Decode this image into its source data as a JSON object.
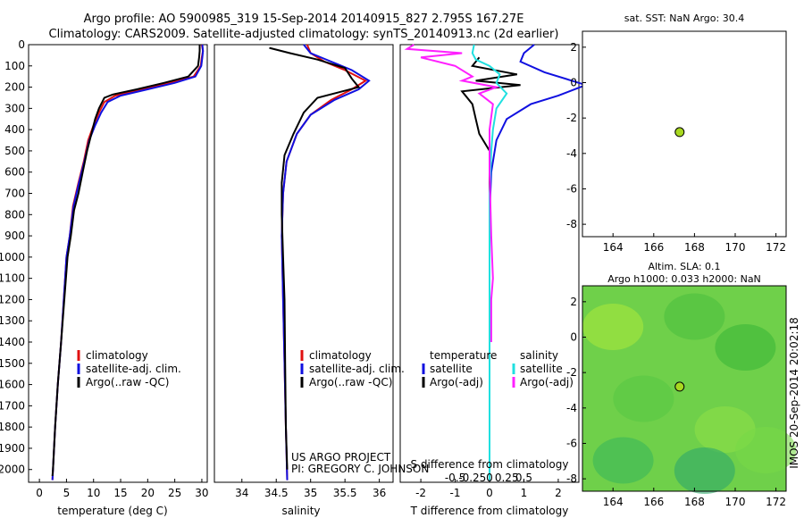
{
  "header": {
    "title_line1": "Argo profile: AO 5900985_319 15-Sep-2014 20140915_827 2.795S 167.27E",
    "title_line2": "Climatology: CARS2009. Satellite-adjusted climatology: synTS_20140913.nc (2d earlier)"
  },
  "colors": {
    "climatology": "#e01010",
    "satellite": "#1010e0",
    "argo": "#000000",
    "salinity_sat": "#20e0e0",
    "salinity_argo": "#ff20ff",
    "argo_dot": "#a8d820",
    "map_background": "#6fd04a"
  },
  "credit": {
    "line1": "US ARGO PROJECT",
    "line2": "PI: GREGORY C. JOHNSON"
  },
  "timestamp": "IMOS 20-Sep-2014 20:02:18",
  "chart_data": [
    {
      "type": "line",
      "id": "temperature",
      "xlabel": "temperature (deg C)",
      "xlim": [
        -2,
        31
      ],
      "xticks": [
        0,
        5,
        10,
        15,
        20,
        25,
        30
      ],
      "ylim": [
        2060,
        0
      ],
      "yticks": [
        0,
        100,
        200,
        300,
        400,
        500,
        600,
        700,
        800,
        900,
        1000,
        1100,
        1200,
        1300,
        1400,
        1500,
        1600,
        1700,
        1800,
        1900,
        2000
      ],
      "legend": {
        "position": "bottom-middle",
        "entries": [
          "climatology",
          "satellite-adj. clim.",
          "Argo(..raw -QC)"
        ]
      },
      "series": [
        {
          "name": "climatology",
          "color": "#e01010",
          "points": [
            [
              30.0,
              0
            ],
            [
              30.2,
              30
            ],
            [
              30.0,
              60
            ],
            [
              29.8,
              100
            ],
            [
              28.5,
              150
            ],
            [
              24.0,
              180
            ],
            [
              19.0,
              210
            ],
            [
              14.0,
              240
            ],
            [
              12.0,
              270
            ],
            [
              11.0,
              320
            ],
            [
              10.0,
              380
            ],
            [
              9.0,
              450
            ],
            [
              8.2,
              550
            ],
            [
              7.2,
              650
            ],
            [
              6.2,
              760
            ],
            [
              5.6,
              900
            ],
            [
              5.0,
              1000
            ],
            [
              4.5,
              1200
            ],
            [
              4.0,
              1400
            ],
            [
              3.4,
              1600
            ],
            [
              2.9,
              1800
            ],
            [
              2.5,
              2000
            ],
            [
              2.4,
              2050
            ]
          ]
        },
        {
          "name": "satellite-adj. clim.",
          "color": "#1010e0",
          "points": [
            [
              30.1,
              0
            ],
            [
              30.2,
              30
            ],
            [
              30.1,
              60
            ],
            [
              29.9,
              100
            ],
            [
              28.8,
              150
            ],
            [
              25.0,
              180
            ],
            [
              20.0,
              210
            ],
            [
              15.0,
              240
            ],
            [
              12.6,
              270
            ],
            [
              11.4,
              320
            ],
            [
              10.3,
              380
            ],
            [
              9.2,
              450
            ],
            [
              8.3,
              550
            ],
            [
              7.3,
              650
            ],
            [
              6.3,
              760
            ],
            [
              5.6,
              900
            ],
            [
              5.0,
              1000
            ],
            [
              4.5,
              1200
            ],
            [
              4.0,
              1400
            ],
            [
              3.4,
              1600
            ],
            [
              2.9,
              1800
            ],
            [
              2.5,
              2000
            ],
            [
              2.4,
              2050
            ]
          ]
        },
        {
          "name": "Argo(..raw -QC)",
          "color": "#000000",
          "points": [
            [
              29.6,
              0
            ],
            [
              29.6,
              30
            ],
            [
              29.5,
              60
            ],
            [
              29.3,
              100
            ],
            [
              27.5,
              150
            ],
            [
              23.0,
              180
            ],
            [
              18.0,
              210
            ],
            [
              13.5,
              235
            ],
            [
              12.0,
              250
            ],
            [
              11.0,
              300
            ],
            [
              10.3,
              350
            ],
            [
              9.6,
              420
            ],
            [
              8.8,
              500
            ],
            [
              8.0,
              600
            ],
            [
              7.2,
              700
            ],
            [
              6.4,
              780
            ],
            [
              5.8,
              900
            ],
            [
              5.2,
              1000
            ],
            [
              4.6,
              1200
            ],
            [
              4.0,
              1400
            ],
            [
              3.4,
              1600
            ],
            [
              2.9,
              1800
            ],
            [
              2.5,
              2000
            ],
            [
              2.4,
              2030
            ]
          ]
        }
      ]
    },
    {
      "type": "line",
      "id": "salinity",
      "xlabel": "salinity",
      "xlim": [
        33.6,
        36.2
      ],
      "xticks": [
        34,
        34.5,
        35,
        35.5,
        36
      ],
      "ylim": [
        2060,
        0
      ],
      "legend": {
        "position": "bottom-middle",
        "entries": [
          "climatology",
          "satellite-adj. clim.",
          "Argo(..raw -QC)"
        ]
      },
      "series": [
        {
          "name": "climatology",
          "color": "#e01010",
          "points": [
            [
              34.95,
              0
            ],
            [
              35.0,
              40
            ],
            [
              35.2,
              80
            ],
            [
              35.5,
              120
            ],
            [
              35.8,
              170
            ],
            [
              35.6,
              210
            ],
            [
              35.3,
              260
            ],
            [
              35.0,
              330
            ],
            [
              34.8,
              420
            ],
            [
              34.65,
              550
            ],
            [
              34.6,
              700
            ],
            [
              34.58,
              900
            ],
            [
              34.6,
              1200
            ],
            [
              34.62,
              1500
            ],
            [
              34.64,
              1800
            ],
            [
              34.66,
              2050
            ]
          ]
        },
        {
          "name": "satellite-adj. clim.",
          "color": "#1010e0",
          "points": [
            [
              34.9,
              0
            ],
            [
              35.0,
              40
            ],
            [
              35.3,
              80
            ],
            [
              35.6,
              120
            ],
            [
              35.85,
              170
            ],
            [
              35.7,
              210
            ],
            [
              35.35,
              260
            ],
            [
              35.0,
              330
            ],
            [
              34.8,
              420
            ],
            [
              34.65,
              550
            ],
            [
              34.6,
              700
            ],
            [
              34.58,
              900
            ],
            [
              34.6,
              1200
            ],
            [
              34.62,
              1500
            ],
            [
              34.64,
              1800
            ],
            [
              34.66,
              2050
            ]
          ]
        },
        {
          "name": "Argo(..raw -QC)",
          "color": "#000000",
          "points": [
            [
              34.4,
              15
            ],
            [
              34.7,
              40
            ],
            [
              35.1,
              70
            ],
            [
              35.5,
              110
            ],
            [
              35.6,
              160
            ],
            [
              35.7,
              200
            ],
            [
              35.1,
              250
            ],
            [
              34.9,
              320
            ],
            [
              34.75,
              420
            ],
            [
              34.62,
              520
            ],
            [
              34.58,
              650
            ],
            [
              34.58,
              800
            ],
            [
              34.6,
              1000
            ],
            [
              34.62,
              1200
            ],
            [
              34.63,
              1500
            ],
            [
              34.64,
              1800
            ],
            [
              34.66,
              2000
            ]
          ]
        }
      ]
    },
    {
      "type": "line",
      "id": "difference",
      "xlabel": "T difference from climatology",
      "xlabel_top": "S difference from climatology",
      "xlim": [
        -2.6,
        2.6
      ],
      "xticks": [
        -2,
        -1,
        0,
        1,
        2
      ],
      "xticks_top": [
        -0.5,
        -0.25,
        0,
        0.25,
        0.5
      ],
      "ylim": [
        2060,
        0
      ],
      "legend": {
        "position": "bottom",
        "groups": [
          {
            "title": "temperature",
            "entries": [
              "satellite",
              "Argo(-adj)"
            ]
          },
          {
            "title": "salinity",
            "entries": [
              "satellite",
              "Argo(-adj)"
            ]
          }
        ]
      },
      "series": [
        {
          "name": "temperature satellite",
          "color": "#1010e0",
          "points": [
            [
              1.3,
              0
            ],
            [
              1.0,
              40
            ],
            [
              0.9,
              80
            ],
            [
              1.6,
              130
            ],
            [
              2.8,
              190
            ],
            [
              2.0,
              240
            ],
            [
              1.2,
              280
            ],
            [
              0.5,
              350
            ],
            [
              0.2,
              450
            ],
            [
              0.05,
              600
            ],
            [
              0.0,
              800
            ],
            [
              0.0,
              1200
            ],
            [
              0.0,
              1600
            ],
            [
              0.0,
              2050
            ]
          ]
        },
        {
          "name": "temperature Argo(-adj)",
          "color": "#000000",
          "points": [
            [
              -0.3,
              60
            ],
            [
              -0.5,
              100
            ],
            [
              0.8,
              140
            ],
            [
              -0.4,
              170
            ],
            [
              0.9,
              190
            ],
            [
              -0.8,
              220
            ],
            [
              -0.5,
              280
            ],
            [
              -0.4,
              350
            ],
            [
              -0.3,
              420
            ],
            [
              0.0,
              500
            ],
            [
              0.0,
              600
            ],
            [
              0.0,
              800
            ],
            [
              0.0,
              1200
            ],
            [
              0.0,
              1600
            ],
            [
              0.0,
              2050
            ]
          ]
        },
        {
          "name": "salinity satellite",
          "color": "#20e0e0",
          "points": [
            [
              -0.45,
              0
            ],
            [
              -0.5,
              40
            ],
            [
              -0.4,
              70
            ],
            [
              0.0,
              100
            ],
            [
              0.3,
              140
            ],
            [
              0.2,
              180
            ],
            [
              0.5,
              230
            ],
            [
              0.2,
              300
            ],
            [
              0.1,
              400
            ],
            [
              0.05,
              500
            ],
            [
              0.0,
              700
            ],
            [
              0.0,
              1000
            ],
            [
              0.0,
              1400
            ],
            [
              0.0,
              2050
            ]
          ]
        },
        {
          "name": "salinity Argo(-adj)",
          "color": "#ff20ff",
          "points": [
            [
              -2.2,
              0
            ],
            [
              -2.4,
              20
            ],
            [
              -0.8,
              40
            ],
            [
              -2.0,
              60
            ],
            [
              -1.0,
              100
            ],
            [
              -0.5,
              150
            ],
            [
              -0.8,
              170
            ],
            [
              0.2,
              200
            ],
            [
              -0.3,
              230
            ],
            [
              0.1,
              280
            ],
            [
              0.0,
              400
            ],
            [
              0.0,
              600
            ],
            [
              0.05,
              900
            ],
            [
              0.1,
              1100
            ],
            [
              0.05,
              1200
            ],
            [
              0.05,
              1400
            ]
          ]
        }
      ]
    },
    {
      "type": "scatter",
      "id": "sst-map",
      "title": "sat. SST: NaN Argo: 30.4",
      "xlim": [
        162.5,
        172.5
      ],
      "xticks": [
        164,
        166,
        168,
        170,
        172
      ],
      "ylim": [
        -8.7,
        2.9
      ],
      "yticks": [
        2,
        0,
        -2,
        -4,
        -6,
        -8
      ],
      "argo_position": [
        167.27,
        -2.795
      ]
    },
    {
      "type": "heatmap",
      "id": "sla-map",
      "title_line1": "Altim. SLA: 0.1",
      "title_line2": "Argo h1000: 0.033 h2000: NaN",
      "xlim": [
        162.5,
        172.5
      ],
      "xticks": [
        164,
        166,
        168,
        170,
        172
      ],
      "ylim": [
        -8.7,
        2.9
      ],
      "yticks": [
        2,
        0,
        -2,
        -4,
        -6,
        -8
      ],
      "argo_position": [
        167.27,
        -2.795
      ]
    }
  ]
}
